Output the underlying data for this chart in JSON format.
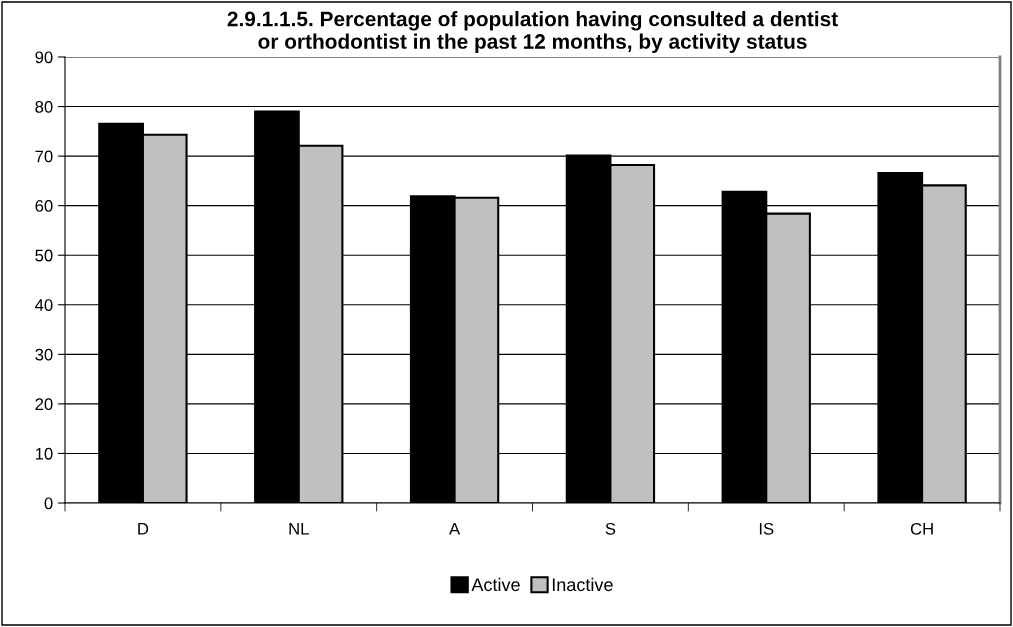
{
  "chart_data": {
    "type": "bar",
    "title": "2.9.1.1.5. Percentage of population having consulted a dentist\nor orthodontist in the past 12 months, by activity status",
    "categories": [
      "D",
      "NL",
      "A",
      "S",
      "IS",
      "CH"
    ],
    "series": [
      {
        "name": "Active",
        "color": "#000000",
        "values": [
          76.5,
          79.0,
          61.9,
          70.1,
          62.8,
          66.6
        ]
      },
      {
        "name": "Inactive",
        "color": "#c0c0c0",
        "values": [
          74.3,
          72.1,
          61.6,
          68.2,
          58.4,
          64.1
        ]
      }
    ],
    "ylim": [
      0,
      90
    ],
    "yticks": [
      0,
      10,
      20,
      30,
      40,
      50,
      60,
      70,
      80,
      90
    ],
    "grid": "y",
    "legend": "bottom"
  }
}
